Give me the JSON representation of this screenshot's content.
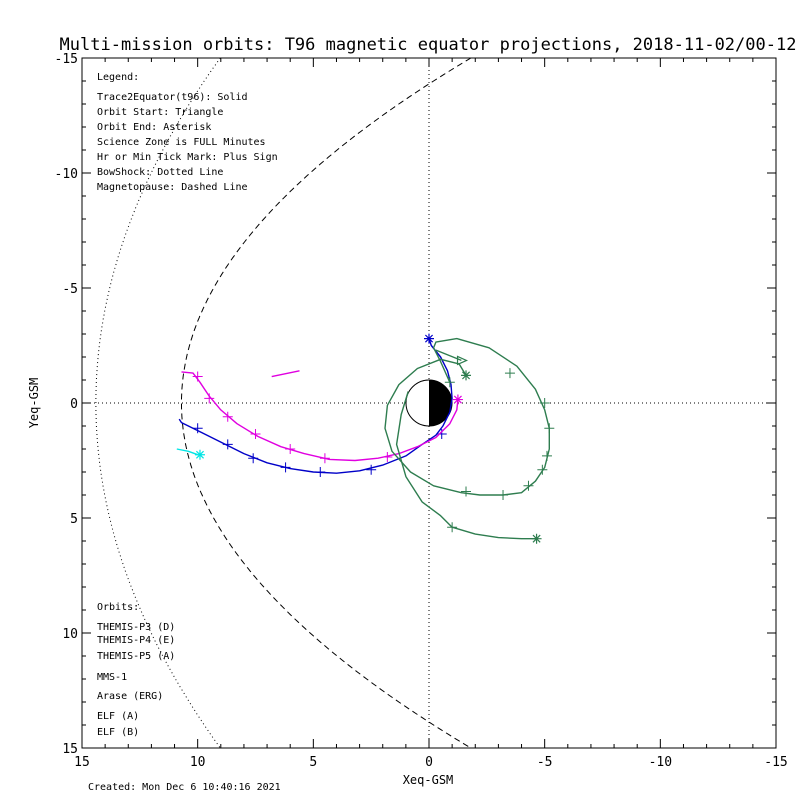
{
  "chart_data": {
    "type": "line",
    "title": "Multi-mission orbits: T96 magnetic equator projections, 2018-11-02/00-12",
    "xlabel": "Xeq-GSM",
    "ylabel": "Yeq-GSM",
    "xlim": [
      15,
      -15
    ],
    "ylim": [
      -15,
      15
    ],
    "x_ticks": [
      "15",
      "10",
      "5",
      "0",
      "-5",
      "-10",
      "-15"
    ],
    "y_ticks": [
      "-15",
      "-10",
      "-5",
      "0",
      "5",
      "10",
      "15"
    ],
    "grid": false,
    "zero_lines": "dotted",
    "legend": {
      "heading": "Legend:",
      "lines": [
        "Trace2Equator(t96): Solid",
        "Orbit Start: Triangle",
        "Orbit End: Asterisk",
        "Science Zone is FULL Minutes",
        "Hr or Min Tick Mark: Plus Sign",
        "BowShock: Dotted Line",
        "Magnetopause: Dashed Line"
      ]
    },
    "orbits_heading": "Orbits:",
    "orbit_labels": [
      {
        "text": "THEMIS-P3 (D)",
        "color": "#00e5e5"
      },
      {
        "text": "THEMIS-P4 (E)",
        "color": "#0000c8"
      },
      {
        "text": "THEMIS-P5 (A)",
        "color": "#e000e0"
      },
      {
        "text": "MMS-1",
        "color": "#000000"
      },
      {
        "text": "Arase (ERG)",
        "color": "#2e7d4f"
      },
      {
        "text": "ELF (A)",
        "color": "#3a7fd5"
      },
      {
        "text": "ELF (B)",
        "color": "#c80000"
      }
    ],
    "series": [
      {
        "name": "THEMIS-P3 (D)",
        "color": "#00e5e5",
        "points": [
          [
            10.9,
            2.0
          ],
          [
            10.4,
            2.1
          ],
          [
            10.0,
            2.25
          ]
        ],
        "end": [
          9.9,
          2.25
        ]
      },
      {
        "name": "THEMIS-P4 (E)",
        "color": "#0000c8",
        "points": [
          [
            10.8,
            0.7
          ],
          [
            10.7,
            0.85
          ],
          [
            10.4,
            1.0
          ],
          [
            9.8,
            1.3
          ],
          [
            8.9,
            1.75
          ],
          [
            8.0,
            2.2
          ],
          [
            7.0,
            2.6
          ],
          [
            6.0,
            2.85
          ],
          [
            5.0,
            3.0
          ],
          [
            4.0,
            3.05
          ],
          [
            3.0,
            2.95
          ],
          [
            2.0,
            2.7
          ],
          [
            1.0,
            2.3
          ],
          [
            0.3,
            1.8
          ],
          [
            -0.3,
            1.4
          ],
          [
            -0.6,
            1.0
          ],
          [
            -0.9,
            0.4
          ],
          [
            -1.0,
            -0.2
          ],
          [
            -0.95,
            -0.8
          ],
          [
            -0.8,
            -1.4
          ],
          [
            -0.5,
            -2.0
          ],
          [
            -0.1,
            -2.5
          ],
          [
            0.0,
            -2.8
          ]
        ],
        "ticks": [
          [
            10.0,
            1.1
          ],
          [
            8.7,
            1.8
          ],
          [
            7.6,
            2.4
          ],
          [
            6.2,
            2.8
          ],
          [
            4.7,
            3.0
          ],
          [
            2.5,
            2.9
          ],
          [
            -0.55,
            1.35
          ]
        ],
        "end": [
          0.0,
          -2.8
        ]
      },
      {
        "name": "THEMIS-P5 (A)",
        "color": "#e000e0",
        "points": [
          [
            10.7,
            -1.35
          ],
          [
            10.2,
            -1.3
          ],
          [
            9.9,
            -0.9
          ],
          [
            9.5,
            -0.3
          ],
          [
            9.0,
            0.3
          ],
          [
            8.3,
            0.9
          ],
          [
            7.4,
            1.45
          ],
          [
            6.4,
            1.9
          ],
          [
            5.4,
            2.2
          ],
          [
            4.3,
            2.45
          ],
          [
            3.2,
            2.5
          ],
          [
            2.2,
            2.4
          ],
          [
            1.3,
            2.2
          ],
          [
            0.5,
            1.9
          ],
          [
            -0.3,
            1.5
          ],
          [
            -0.9,
            0.9
          ],
          [
            -1.2,
            0.3
          ],
          [
            -1.25,
            -0.15
          ]
        ],
        "ticks": [
          [
            10.0,
            -1.15
          ],
          [
            9.5,
            -0.2
          ],
          [
            8.7,
            0.6
          ],
          [
            7.5,
            1.35
          ],
          [
            6.0,
            2.0
          ],
          [
            4.5,
            2.4
          ],
          [
            1.8,
            2.35
          ]
        ],
        "end": [
          -1.25,
          -0.15
        ]
      },
      {
        "name": "THEMIS-P5 (A) fragment",
        "color": "#e000e0",
        "points": [
          [
            6.8,
            -1.15
          ],
          [
            5.6,
            -1.4
          ]
        ]
      },
      {
        "name": "Arase (ERG)",
        "color": "#2e7d4f",
        "points": [
          [
            -0.9,
            -0.9
          ],
          [
            -0.5,
            -1.8
          ],
          [
            -0.2,
            -2.4
          ],
          [
            -0.3,
            -2.65
          ],
          [
            -1.2,
            -2.8
          ],
          [
            -2.6,
            -2.4
          ],
          [
            -3.8,
            -1.6
          ],
          [
            -4.6,
            -0.6
          ],
          [
            -5.0,
            0.3
          ],
          [
            -5.2,
            1.1
          ],
          [
            -5.2,
            2.0
          ],
          [
            -5.0,
            2.8
          ],
          [
            -4.6,
            3.4
          ],
          [
            -4.0,
            3.9
          ],
          [
            -3.2,
            4.0
          ],
          [
            -2.2,
            4.0
          ],
          [
            -1.4,
            3.9
          ],
          [
            -0.2,
            3.6
          ],
          [
            0.8,
            3.0
          ],
          [
            1.6,
            2.1
          ],
          [
            1.9,
            1.1
          ],
          [
            1.8,
            0.1
          ],
          [
            1.3,
            -0.8
          ],
          [
            0.5,
            -1.5
          ],
          [
            -0.5,
            -1.9
          ],
          [
            -1.3,
            -1.7
          ],
          [
            -1.6,
            -1.2
          ]
        ],
        "ticks": [
          [
            -0.9,
            -0.9
          ]
        ],
        "end": [
          -1.6,
          -1.2
        ]
      },
      {
        "name": "Arase (ERG) second pass",
        "color": "#2e7d4f",
        "points": [
          [
            0.9,
            -0.5
          ],
          [
            1.2,
            0.5
          ],
          [
            1.4,
            1.8
          ],
          [
            1.0,
            3.2
          ],
          [
            0.3,
            4.3
          ],
          [
            -0.5,
            4.9
          ],
          [
            -1.0,
            5.4
          ],
          [
            -2.0,
            5.7
          ],
          [
            -3.0,
            5.85
          ],
          [
            -4.0,
            5.9
          ],
          [
            -4.65,
            5.9
          ]
        ],
        "ticks": [
          [
            -1.0,
            5.4
          ],
          [
            -1.6,
            3.85
          ],
          [
            -3.2,
            4.0
          ],
          [
            -4.3,
            3.6
          ],
          [
            -4.9,
            2.9
          ],
          [
            -5.1,
            2.3
          ],
          [
            -5.2,
            1.1
          ],
          [
            -5.0,
            0.0
          ],
          [
            -3.5,
            -1.3
          ]
        ],
        "end": [
          -4.65,
          5.9
        ]
      },
      {
        "name": "Arase trace loop",
        "color": "#2e7d4f",
        "points": [
          [
            -0.3,
            -2.3
          ],
          [
            -1.4,
            -1.85
          ]
        ]
      }
    ],
    "starts": [
      {
        "x": -1.45,
        "y": -1.85,
        "color": "#2e7d4f"
      }
    ],
    "footer": "Created: Mon Dec  6 10:40:16 2021"
  }
}
